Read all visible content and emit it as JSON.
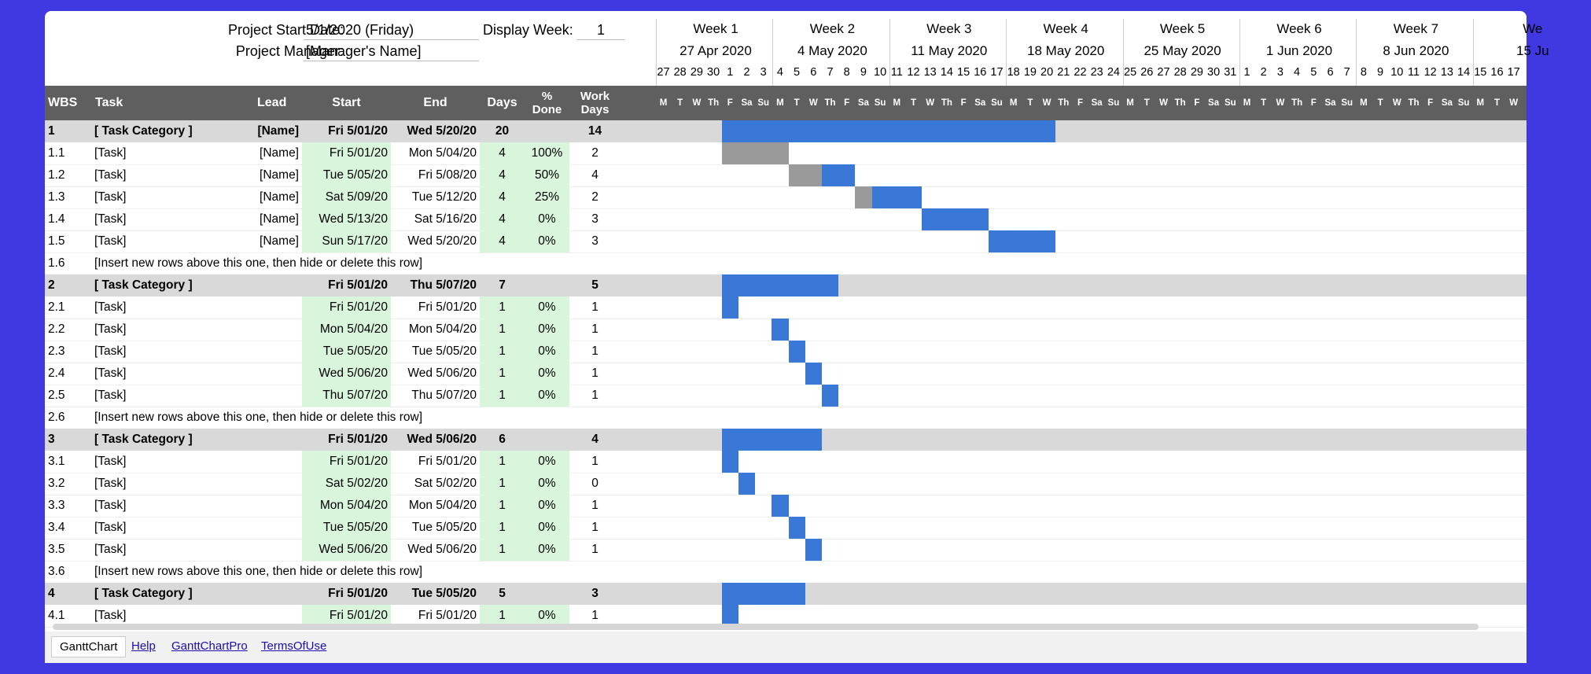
{
  "header": {
    "start_date_label": "Project Start Date:",
    "start_date_value": "5/1/2020 (Friday)",
    "manager_label": "Project Manager:",
    "manager_value": "[Manager's Name]",
    "display_week_label": "Display Week:",
    "display_week_value": "1"
  },
  "weeks": [
    {
      "title": "Week 1",
      "date": "27 Apr 2020",
      "days": [
        "27",
        "28",
        "29",
        "30",
        "1",
        "2",
        "3"
      ]
    },
    {
      "title": "Week 2",
      "date": "4 May 2020",
      "days": [
        "4",
        "5",
        "6",
        "7",
        "8",
        "9",
        "10"
      ]
    },
    {
      "title": "Week 3",
      "date": "11 May 2020",
      "days": [
        "11",
        "12",
        "13",
        "14",
        "15",
        "16",
        "17"
      ]
    },
    {
      "title": "Week 4",
      "date": "18 May 2020",
      "days": [
        "18",
        "19",
        "20",
        "21",
        "22",
        "23",
        "24"
      ]
    },
    {
      "title": "Week 5",
      "date": "25 May 2020",
      "days": [
        "25",
        "26",
        "27",
        "28",
        "29",
        "30",
        "31"
      ]
    },
    {
      "title": "Week 6",
      "date": "1 Jun 2020",
      "days": [
        "1",
        "2",
        "3",
        "4",
        "5",
        "6",
        "7"
      ]
    },
    {
      "title": "Week 7",
      "date": "8 Jun 2020",
      "days": [
        "8",
        "9",
        "10",
        "11",
        "12",
        "13",
        "14"
      ]
    },
    {
      "title": "We",
      "date": "15 Ju",
      "days": [
        "15",
        "16",
        "17"
      ]
    }
  ],
  "weekday_letters": [
    "M",
    "T",
    "W",
    "Th",
    "F",
    "Sa",
    "Su"
  ],
  "columns": {
    "wbs": "WBS",
    "task": "Task",
    "lead": "Lead",
    "start": "Start",
    "end": "End",
    "days": "Days",
    "done_top": "%",
    "done_bottom": "Done",
    "work_top": "Work",
    "work_bottom": "Days"
  },
  "rows": [
    {
      "wbs": "1",
      "task": "[ Task Category ]",
      "lead": "[Name]",
      "start": "Fri 5/01/20",
      "end": "Wed 5/20/20",
      "days": "20",
      "done": "",
      "work": "14",
      "cat": true,
      "bar_start": 4,
      "bar_len": 20,
      "done_days": 0
    },
    {
      "wbs": "1.1",
      "task": "[Task]",
      "lead": "[Name]",
      "start": "Fri 5/01/20",
      "end": "Mon 5/04/20",
      "days": "4",
      "done": "100%",
      "work": "2",
      "bar_start": 4,
      "bar_len": 4,
      "done_days": 4
    },
    {
      "wbs": "1.2",
      "task": "[Task]",
      "lead": "[Name]",
      "start": "Tue 5/05/20",
      "end": "Fri 5/08/20",
      "days": "4",
      "done": "50%",
      "work": "4",
      "bar_start": 8,
      "bar_len": 4,
      "done_days": 2
    },
    {
      "wbs": "1.3",
      "task": "[Task]",
      "lead": "[Name]",
      "start": "Sat 5/09/20",
      "end": "Tue 5/12/20",
      "days": "4",
      "done": "25%",
      "work": "2",
      "bar_start": 12,
      "bar_len": 4,
      "done_days": 1
    },
    {
      "wbs": "1.4",
      "task": "[Task]",
      "lead": "[Name]",
      "start": "Wed 5/13/20",
      "end": "Sat 5/16/20",
      "days": "4",
      "done": "0%",
      "work": "3",
      "bar_start": 16,
      "bar_len": 4,
      "done_days": 0
    },
    {
      "wbs": "1.5",
      "task": "[Task]",
      "lead": "[Name]",
      "start": "Sun 5/17/20",
      "end": "Wed 5/20/20",
      "days": "4",
      "done": "0%",
      "work": "3",
      "bar_start": 20,
      "bar_len": 4,
      "done_days": 0
    },
    {
      "wbs": "1.6",
      "task": "[Insert new rows above this one, then hide or delete this row]",
      "insert": true
    },
    {
      "wbs": "2",
      "task": "[ Task Category ]",
      "lead": "",
      "start": "Fri 5/01/20",
      "end": "Thu 5/07/20",
      "days": "7",
      "done": "",
      "work": "5",
      "cat": true,
      "bar_start": 4,
      "bar_len": 7,
      "done_days": 0
    },
    {
      "wbs": "2.1",
      "task": "[Task]",
      "lead": "",
      "start": "Fri 5/01/20",
      "end": "Fri 5/01/20",
      "days": "1",
      "done": "0%",
      "work": "1",
      "bar_start": 4,
      "bar_len": 1,
      "done_days": 0
    },
    {
      "wbs": "2.2",
      "task": "[Task]",
      "lead": "",
      "start": "Mon 5/04/20",
      "end": "Mon 5/04/20",
      "days": "1",
      "done": "0%",
      "work": "1",
      "bar_start": 7,
      "bar_len": 1,
      "done_days": 0
    },
    {
      "wbs": "2.3",
      "task": "[Task]",
      "lead": "",
      "start": "Tue 5/05/20",
      "end": "Tue 5/05/20",
      "days": "1",
      "done": "0%",
      "work": "1",
      "bar_start": 8,
      "bar_len": 1,
      "done_days": 0
    },
    {
      "wbs": "2.4",
      "task": "[Task]",
      "lead": "",
      "start": "Wed 5/06/20",
      "end": "Wed 5/06/20",
      "days": "1",
      "done": "0%",
      "work": "1",
      "bar_start": 9,
      "bar_len": 1,
      "done_days": 0
    },
    {
      "wbs": "2.5",
      "task": "[Task]",
      "lead": "",
      "start": "Thu 5/07/20",
      "end": "Thu 5/07/20",
      "days": "1",
      "done": "0%",
      "work": "1",
      "bar_start": 10,
      "bar_len": 1,
      "done_days": 0
    },
    {
      "wbs": "2.6",
      "task": "[Insert new rows above this one, then hide or delete this row]",
      "insert": true
    },
    {
      "wbs": "3",
      "task": "[ Task Category ]",
      "lead": "",
      "start": "Fri 5/01/20",
      "end": "Wed 5/06/20",
      "days": "6",
      "done": "",
      "work": "4",
      "cat": true,
      "bar_start": 4,
      "bar_len": 6,
      "done_days": 0
    },
    {
      "wbs": "3.1",
      "task": "[Task]",
      "lead": "",
      "start": "Fri 5/01/20",
      "end": "Fri 5/01/20",
      "days": "1",
      "done": "0%",
      "work": "1",
      "bar_start": 4,
      "bar_len": 1,
      "done_days": 0
    },
    {
      "wbs": "3.2",
      "task": "[Task]",
      "lead": "",
      "start": "Sat 5/02/20",
      "end": "Sat 5/02/20",
      "days": "1",
      "done": "0%",
      "work": "0",
      "bar_start": 5,
      "bar_len": 1,
      "done_days": 0
    },
    {
      "wbs": "3.3",
      "task": "[Task]",
      "lead": "",
      "start": "Mon 5/04/20",
      "end": "Mon 5/04/20",
      "days": "1",
      "done": "0%",
      "work": "1",
      "bar_start": 7,
      "bar_len": 1,
      "done_days": 0
    },
    {
      "wbs": "3.4",
      "task": "[Task]",
      "lead": "",
      "start": "Tue 5/05/20",
      "end": "Tue 5/05/20",
      "days": "1",
      "done": "0%",
      "work": "1",
      "bar_start": 8,
      "bar_len": 1,
      "done_days": 0
    },
    {
      "wbs": "3.5",
      "task": "[Task]",
      "lead": "",
      "start": "Wed 5/06/20",
      "end": "Wed 5/06/20",
      "days": "1",
      "done": "0%",
      "work": "1",
      "bar_start": 9,
      "bar_len": 1,
      "done_days": 0
    },
    {
      "wbs": "3.6",
      "task": "[Insert new rows above this one, then hide or delete this row]",
      "insert": true
    },
    {
      "wbs": "4",
      "task": "[ Task Category ]",
      "lead": "",
      "start": "Fri 5/01/20",
      "end": "Tue 5/05/20",
      "days": "5",
      "done": "",
      "work": "3",
      "cat": true,
      "bar_start": 4,
      "bar_len": 5,
      "done_days": 0
    },
    {
      "wbs": "4.1",
      "task": "[Task]",
      "lead": "",
      "start": "Fri 5/01/20",
      "end": "Fri 5/01/20",
      "days": "1",
      "done": "0%",
      "work": "1",
      "bar_start": 4,
      "bar_len": 1,
      "done_days": 0
    }
  ],
  "tabs": {
    "active": "GanttChart",
    "links": [
      "Help",
      "GanttChartPro",
      "TermsOfUse"
    ]
  },
  "colors": {
    "bar": "#3a78d8",
    "done": "#9a9a9a",
    "category_bg": "#d9d9d9",
    "date_bg": "#d9f5dc",
    "header_bg": "#5f5f5f"
  }
}
